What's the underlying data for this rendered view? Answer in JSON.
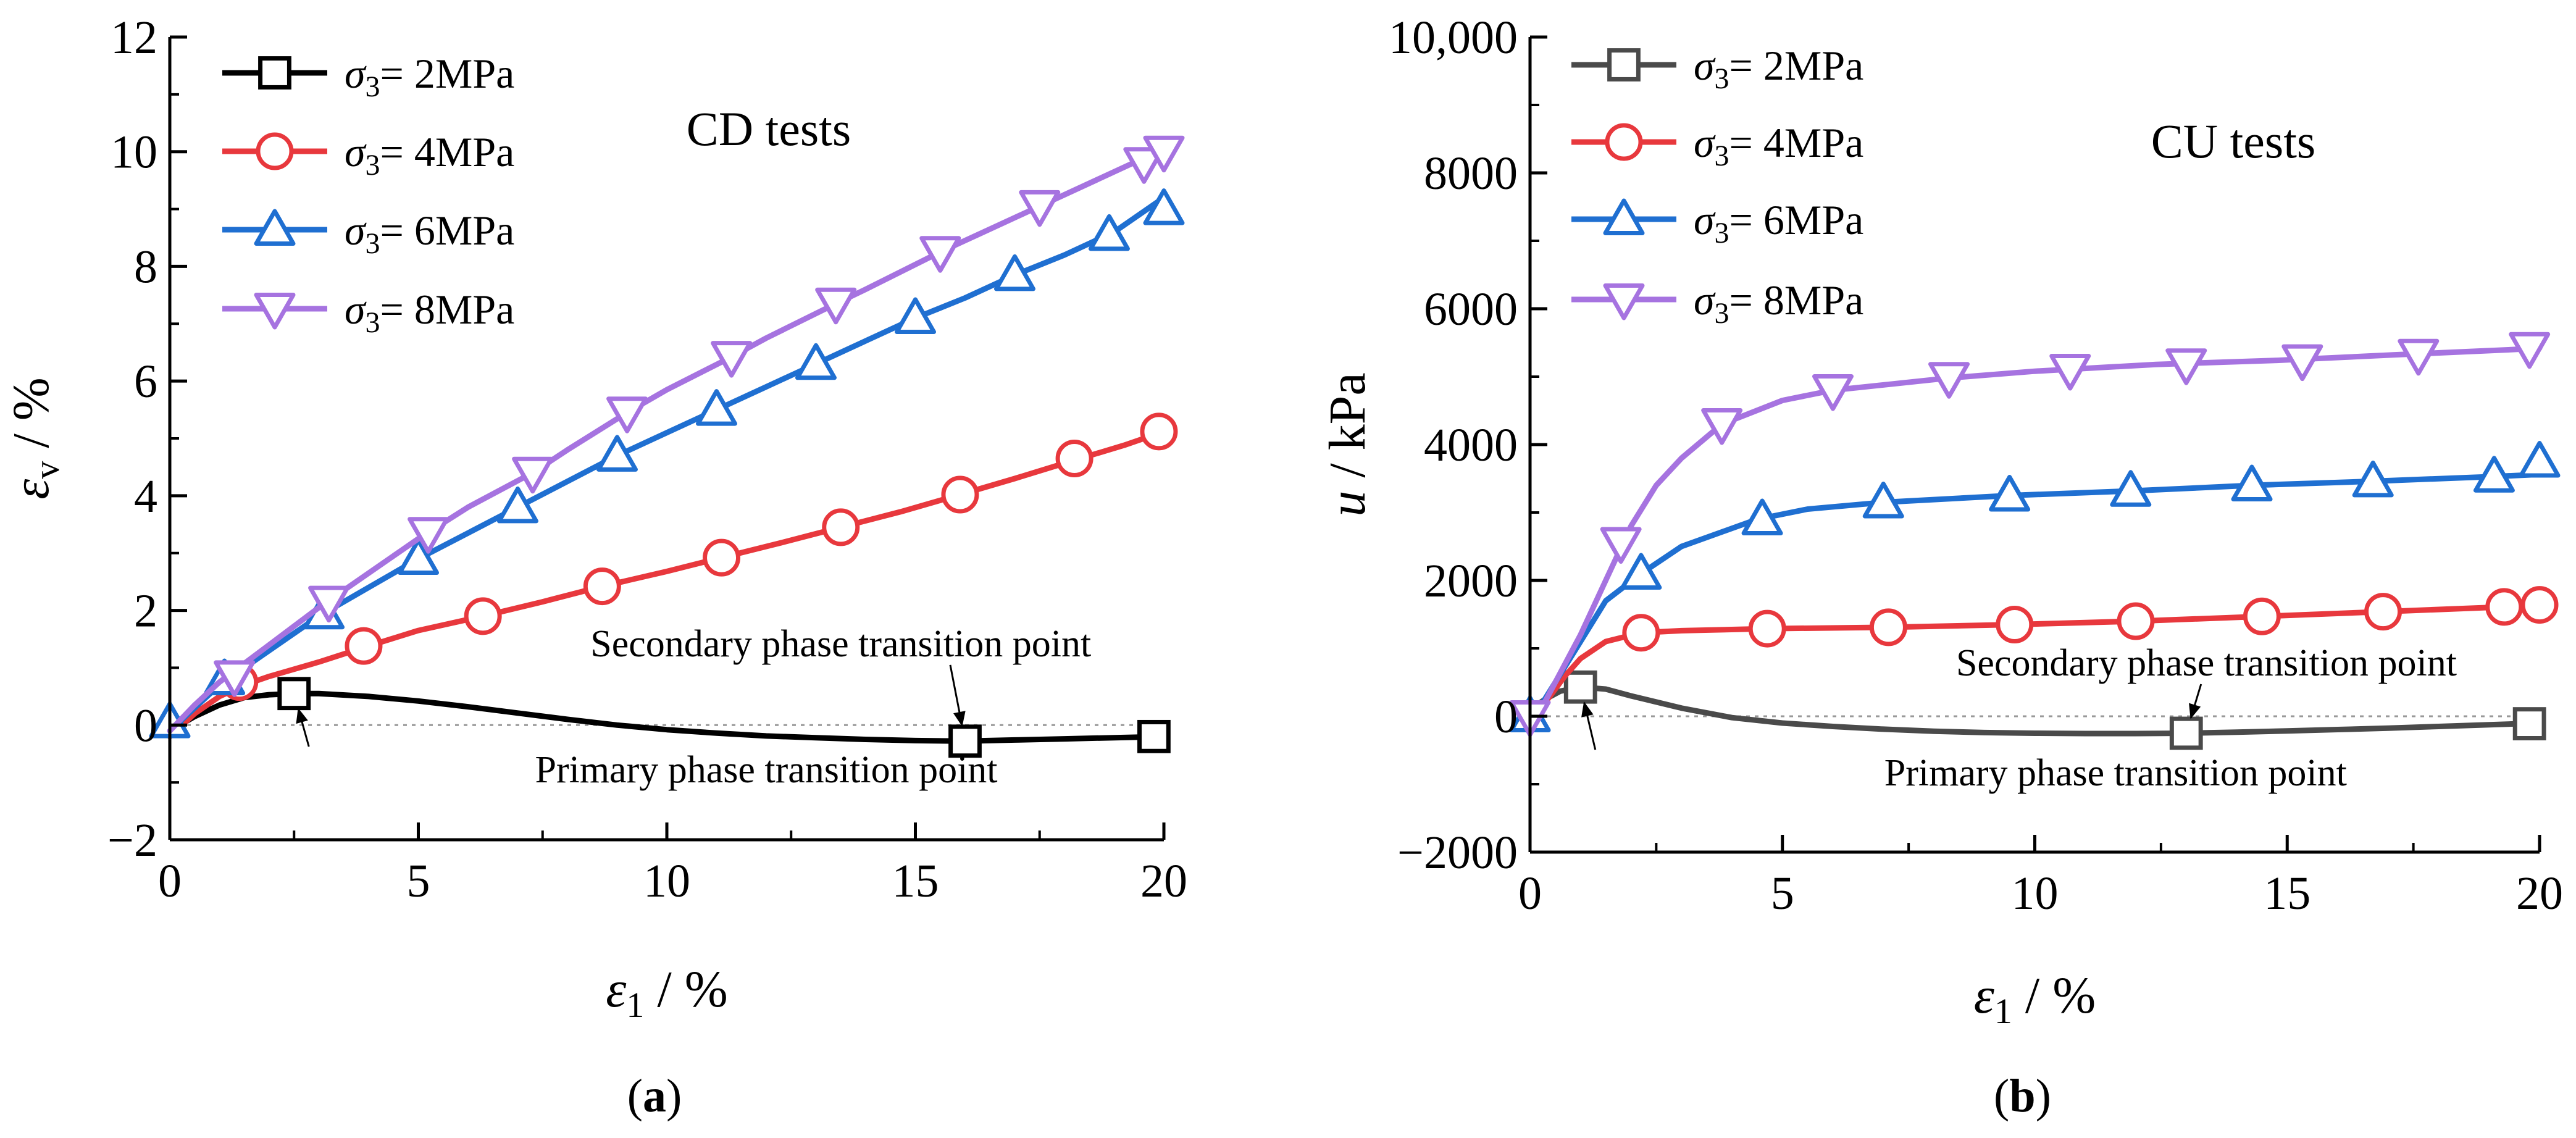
{
  "chart_data": [
    {
      "type": "line",
      "panel_label": "a",
      "title": "CD tests",
      "xlabel": {
        "symbol": "ε",
        "sub": "1",
        "unit": " / %"
      },
      "ylabel": {
        "symbol": "ε",
        "sub": "v",
        "unit": " / %"
      },
      "xlim": [
        0,
        20
      ],
      "ylim": [
        -2,
        12
      ],
      "xticks": [
        "0",
        "5",
        "10",
        "15",
        "20"
      ],
      "yticks": [
        "−2",
        "0",
        "2",
        "4",
        "6",
        "8",
        "10",
        "12"
      ],
      "xtickvals": [
        0,
        5,
        10,
        15,
        20
      ],
      "ytickvals": [
        -2,
        0,
        2,
        4,
        6,
        8,
        10,
        12
      ],
      "zero_line": true,
      "series": [
        {
          "name": "σ3= 2MPa",
          "name_main": "σ",
          "name_sub": "3",
          "name_rest": "= 2MPa",
          "color": "#000000",
          "marker": "square",
          "curve": [
            [
              0,
              -0.1
            ],
            [
              0.5,
              0.15
            ],
            [
              1,
              0.35
            ],
            [
              1.5,
              0.48
            ],
            [
              2,
              0.53
            ],
            [
              2.5,
              0.55
            ],
            [
              3,
              0.55
            ],
            [
              4,
              0.5
            ],
            [
              5,
              0.42
            ],
            [
              6,
              0.32
            ],
            [
              7,
              0.21
            ],
            [
              8,
              0.1
            ],
            [
              9,
              0.0
            ],
            [
              10,
              -0.08
            ],
            [
              11,
              -0.14
            ],
            [
              12,
              -0.19
            ],
            [
              13,
              -0.22
            ],
            [
              14,
              -0.25
            ],
            [
              15,
              -0.27
            ],
            [
              16,
              -0.28
            ],
            [
              17,
              -0.26
            ],
            [
              18,
              -0.24
            ],
            [
              19,
              -0.22
            ],
            [
              20,
              -0.2
            ]
          ],
          "markers": [
            [
              2.5,
              0.55
            ],
            [
              16,
              -0.28
            ],
            [
              19.8,
              -0.2
            ]
          ]
        },
        {
          "name": "σ3= 4MPa",
          "name_main": "σ",
          "name_sub": "3",
          "name_rest": "= 4MPa",
          "color": "#e8383d",
          "marker": "circle",
          "curve": [
            [
              0,
              -0.2
            ],
            [
              0.5,
              0.2
            ],
            [
              1,
              0.5
            ],
            [
              1.5,
              0.7
            ],
            [
              2,
              0.85
            ],
            [
              3,
              1.1
            ],
            [
              4,
              1.38
            ],
            [
              5,
              1.65
            ],
            [
              6.3,
              1.9
            ],
            [
              7.5,
              2.15
            ],
            [
              8.7,
              2.42
            ],
            [
              10,
              2.68
            ],
            [
              11.1,
              2.92
            ],
            [
              12.3,
              3.18
            ],
            [
              13.5,
              3.45
            ],
            [
              14.7,
              3.72
            ],
            [
              15.9,
              4.02
            ],
            [
              17,
              4.3
            ],
            [
              18.2,
              4.62
            ],
            [
              19.2,
              4.88
            ],
            [
              20,
              5.12
            ]
          ],
          "markers": [
            [
              1.4,
              0.75
            ],
            [
              3.9,
              1.38
            ],
            [
              6.3,
              1.9
            ],
            [
              8.7,
              2.42
            ],
            [
              11.1,
              2.92
            ],
            [
              13.5,
              3.45
            ],
            [
              15.9,
              4.02
            ],
            [
              18.2,
              4.65
            ],
            [
              19.9,
              5.12
            ]
          ]
        },
        {
          "name": "σ3= 6MPa",
          "name_main": "σ",
          "name_sub": "3",
          "name_rest": "= 6MPa",
          "color": "#1f6fd1",
          "marker": "triangle",
          "curve": [
            [
              0,
              -0.1
            ],
            [
              0.5,
              0.3
            ],
            [
              1,
              0.7
            ],
            [
              2,
              1.3
            ],
            [
              3,
              1.9
            ],
            [
              4,
              2.4
            ],
            [
              5,
              2.9
            ],
            [
              6,
              3.35
            ],
            [
              7,
              3.8
            ],
            [
              8,
              4.25
            ],
            [
              9,
              4.7
            ],
            [
              10,
              5.1
            ],
            [
              11,
              5.5
            ],
            [
              12,
              5.9
            ],
            [
              13,
              6.3
            ],
            [
              14,
              6.7
            ],
            [
              15,
              7.1
            ],
            [
              16,
              7.45
            ],
            [
              17,
              7.85
            ],
            [
              18,
              8.2
            ],
            [
              19,
              8.6
            ],
            [
              20,
              9.2
            ]
          ],
          "markers": [
            [
              0,
              0.05
            ],
            [
              1.1,
              0.8
            ],
            [
              3.1,
              1.95
            ],
            [
              5,
              2.9
            ],
            [
              7,
              3.8
            ],
            [
              9,
              4.7
            ],
            [
              11,
              5.5
            ],
            [
              13,
              6.3
            ],
            [
              15,
              7.1
            ],
            [
              17,
              7.85
            ],
            [
              18.9,
              8.55
            ],
            [
              20,
              9.0
            ]
          ]
        },
        {
          "name": "σ3= 8MPa",
          "name_main": "σ",
          "name_sub": "3",
          "name_rest": "= 8MPa",
          "color": "#a673e0",
          "marker": "triangle-down",
          "curve": [
            [
              0,
              -0.1
            ],
            [
              0.5,
              0.35
            ],
            [
              1,
              0.75
            ],
            [
              2,
              1.4
            ],
            [
              3,
              2.05
            ],
            [
              4,
              2.65
            ],
            [
              5,
              3.25
            ],
            [
              6,
              3.8
            ],
            [
              7.3,
              4.4
            ],
            [
              8,
              4.8
            ],
            [
              9.2,
              5.45
            ],
            [
              10,
              5.85
            ],
            [
              11.3,
              6.42
            ],
            [
              12,
              6.75
            ],
            [
              13.4,
              7.35
            ],
            [
              14,
              7.6
            ],
            [
              15.5,
              8.25
            ],
            [
              16,
              8.45
            ],
            [
              17.5,
              9.05
            ],
            [
              18,
              9.25
            ],
            [
              19.5,
              9.85
            ],
            [
              20,
              10.0
            ]
          ],
          "markers": [
            [
              1.3,
              0.85
            ],
            [
              3.2,
              2.15
            ],
            [
              5.2,
              3.35
            ],
            [
              7.3,
              4.4
            ],
            [
              9.2,
              5.45
            ],
            [
              11.3,
              6.42
            ],
            [
              13.4,
              7.35
            ],
            [
              15.5,
              8.25
            ],
            [
              17.5,
              9.05
            ],
            [
              19.6,
              9.8
            ],
            [
              20,
              10.0
            ]
          ]
        }
      ],
      "annotations": [
        {
          "text": "Primary phase transition point",
          "target": [
            2.5,
            0.55
          ],
          "label_at": [
            12,
            -1.0
          ]
        },
        {
          "text": "Secondary phase transition point",
          "target": [
            16,
            -0.28
          ],
          "label_at": [
            13.5,
            1.2
          ]
        }
      ]
    },
    {
      "type": "line",
      "panel_label": "b",
      "title": "CU tests",
      "xlabel": {
        "symbol": "ε",
        "sub": "1",
        "unit": " / %"
      },
      "ylabel": {
        "symbol": "u",
        "sub": "",
        "unit": " / kPa"
      },
      "xlim": [
        0,
        20
      ],
      "ylim": [
        -2000,
        10000
      ],
      "xticks": [
        "0",
        "5",
        "10",
        "15",
        "20"
      ],
      "yticks": [
        "−2000",
        "0",
        "2000",
        "4000",
        "6000",
        "8000",
        "10,000"
      ],
      "xtickvals": [
        0,
        5,
        10,
        15,
        20
      ],
      "ytickvals": [
        -2000,
        0,
        2000,
        4000,
        6000,
        8000,
        10000
      ],
      "zero_line": true,
      "series": [
        {
          "name": "σ3= 2MPa",
          "name_main": "σ",
          "name_sub": "3",
          "name_rest": "= 2MPa",
          "color": "#4a4a4a",
          "marker": "square",
          "curve": [
            [
              0,
              100
            ],
            [
              0.3,
              250
            ],
            [
              0.6,
              370
            ],
            [
              1,
              430
            ],
            [
              1.5,
              400
            ],
            [
              2,
              300
            ],
            [
              3,
              120
            ],
            [
              4,
              -20
            ],
            [
              5,
              -100
            ],
            [
              6,
              -150
            ],
            [
              7,
              -190
            ],
            [
              8,
              -220
            ],
            [
              9,
              -240
            ],
            [
              10,
              -250
            ],
            [
              11,
              -255
            ],
            [
              12,
              -255
            ],
            [
              13,
              -250
            ],
            [
              14,
              -235
            ],
            [
              15,
              -215
            ],
            [
              16,
              -195
            ],
            [
              17,
              -175
            ],
            [
              18,
              -150
            ],
            [
              19,
              -125
            ],
            [
              20,
              -100
            ]
          ],
          "markers": [
            [
              1,
              430
            ],
            [
              13,
              -250
            ],
            [
              19.8,
              -110
            ]
          ]
        },
        {
          "name": "σ3= 4MPa",
          "name_main": "σ",
          "name_sub": "3",
          "name_rest": "= 4MPa",
          "color": "#e8383d",
          "marker": "circle",
          "curve": [
            [
              0,
              -200
            ],
            [
              0.3,
              200
            ],
            [
              0.7,
              600
            ],
            [
              1,
              850
            ],
            [
              1.5,
              1100
            ],
            [
              2.2,
              1230
            ],
            [
              3,
              1260
            ],
            [
              4.7,
              1290
            ],
            [
              7.1,
              1310
            ],
            [
              9.6,
              1350
            ],
            [
              12,
              1400
            ],
            [
              14.5,
              1470
            ],
            [
              16.9,
              1540
            ],
            [
              19.3,
              1610
            ],
            [
              20,
              1640
            ]
          ],
          "markers": [
            [
              2.2,
              1230
            ],
            [
              4.7,
              1290
            ],
            [
              7.1,
              1310
            ],
            [
              9.6,
              1350
            ],
            [
              12,
              1400
            ],
            [
              14.5,
              1470
            ],
            [
              16.9,
              1540
            ],
            [
              19.3,
              1610
            ],
            [
              20,
              1640
            ]
          ]
        },
        {
          "name": "σ3= 6MPa",
          "name_main": "σ",
          "name_sub": "3",
          "name_rest": "= 6MPa",
          "color": "#1f6fd1",
          "marker": "triangle",
          "curve": [
            [
              0,
              -100
            ],
            [
              0.5,
              500
            ],
            [
              1,
              1100
            ],
            [
              1.5,
              1700
            ],
            [
              2.2,
              2100
            ],
            [
              3,
              2500
            ],
            [
              4.5,
              2900
            ],
            [
              5.5,
              3050
            ],
            [
              7,
              3150
            ],
            [
              9.5,
              3250
            ],
            [
              12,
              3320
            ],
            [
              14.3,
              3400
            ],
            [
              16.7,
              3460
            ],
            [
              19.1,
              3530
            ],
            [
              20,
              3560
            ]
          ],
          "markers": [
            [
              0,
              0
            ],
            [
              2.2,
              2100
            ],
            [
              4.6,
              2900
            ],
            [
              7,
              3150
            ],
            [
              9.5,
              3250
            ],
            [
              11.9,
              3320
            ],
            [
              14.3,
              3400
            ],
            [
              16.7,
              3460
            ],
            [
              19.1,
              3530
            ],
            [
              20,
              3750
            ]
          ]
        },
        {
          "name": "σ3= 8MPa",
          "name_main": "σ",
          "name_sub": "3",
          "name_rest": "= 8MPa",
          "color": "#a673e0",
          "marker": "triangle-down",
          "curve": [
            [
              0,
              -200
            ],
            [
              0.5,
              500
            ],
            [
              1,
              1200
            ],
            [
              1.5,
              2000
            ],
            [
              2,
              2800
            ],
            [
              2.5,
              3400
            ],
            [
              3,
              3800
            ],
            [
              3.8,
              4300
            ],
            [
              5,
              4650
            ],
            [
              6,
              4800
            ],
            [
              8.3,
              4980
            ],
            [
              10,
              5080
            ],
            [
              12.4,
              5180
            ],
            [
              14.8,
              5240
            ],
            [
              17.1,
              5320
            ],
            [
              19.5,
              5400
            ],
            [
              20,
              5420
            ]
          ],
          "markers": [
            [
              0,
              0
            ],
            [
              1.8,
              2550
            ],
            [
              3.8,
              4300
            ],
            [
              6,
              4800
            ],
            [
              8.3,
              4980
            ],
            [
              10.7,
              5100
            ],
            [
              13,
              5180
            ],
            [
              15.3,
              5240
            ],
            [
              17.6,
              5320
            ],
            [
              19.8,
              5420
            ]
          ]
        }
      ],
      "annotations": [
        {
          "text": "Primary phase transition point",
          "target": [
            1,
            430
          ],
          "label_at": [
            11.6,
            -1020
          ]
        },
        {
          "text": "Secondary phase transition point",
          "target": [
            13,
            -250
          ],
          "label_at": [
            13.4,
            600
          ]
        }
      ]
    }
  ]
}
